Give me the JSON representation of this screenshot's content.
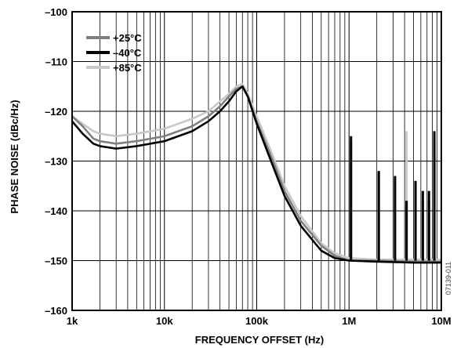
{
  "chart_data": {
    "type": "line",
    "xlabel": "FREQUENCY OFFSET (Hz)",
    "ylabel": "PHASE NOISE (dBc/Hz)",
    "x_scale": "log",
    "xlim": [
      1000,
      10000000
    ],
    "ylim": [
      -160,
      -100
    ],
    "x_ticks": [
      {
        "value": 1000,
        "label": "1k"
      },
      {
        "value": 10000,
        "label": "10k"
      },
      {
        "value": 100000,
        "label": "100k"
      },
      {
        "value": 1000000,
        "label": "1M"
      },
      {
        "value": 10000000,
        "label": "10M"
      }
    ],
    "y_ticks": [
      {
        "value": -100,
        "label": "–100"
      },
      {
        "value": -110,
        "label": "–110"
      },
      {
        "value": -120,
        "label": "–120"
      },
      {
        "value": -130,
        "label": "–130"
      },
      {
        "value": -140,
        "label": "–140"
      },
      {
        "value": -150,
        "label": "–150"
      },
      {
        "value": -160,
        "label": "–160"
      }
    ],
    "grid": true,
    "legend_position": "top-left",
    "figure_id": "07139-011",
    "series": [
      {
        "name": "+25°C",
        "color": "#7f7f7f",
        "points": [
          [
            1000,
            -121
          ],
          [
            1300,
            -123
          ],
          [
            1700,
            -125.5
          ],
          [
            2000,
            -126
          ],
          [
            3000,
            -126.5
          ],
          [
            5000,
            -126
          ],
          [
            10000,
            -125
          ],
          [
            20000,
            -123
          ],
          [
            30000,
            -121
          ],
          [
            40000,
            -119
          ],
          [
            50000,
            -117
          ],
          [
            60000,
            -115.5
          ],
          [
            70000,
            -115
          ],
          [
            80000,
            -117
          ],
          [
            100000,
            -122
          ],
          [
            150000,
            -130
          ],
          [
            200000,
            -136
          ],
          [
            300000,
            -142
          ],
          [
            500000,
            -147
          ],
          [
            700000,
            -149
          ],
          [
            1000000,
            -150
          ],
          [
            2000000,
            -150
          ],
          [
            5000000,
            -150.2
          ],
          [
            10000000,
            -150.2
          ]
        ],
        "spurs": [
          [
            1050000,
            -126
          ],
          [
            2100000,
            -132
          ],
          [
            3150000,
            -135
          ],
          [
            4200000,
            -138
          ],
          [
            5250000,
            -134
          ],
          [
            6300000,
            -138
          ],
          [
            7350000,
            -138
          ],
          [
            8400000,
            -126
          ]
        ]
      },
      {
        "name": "–40°C",
        "color": "#000000",
        "points": [
          [
            1000,
            -122
          ],
          [
            1300,
            -124.5
          ],
          [
            1700,
            -126.5
          ],
          [
            2000,
            -127
          ],
          [
            3000,
            -127.5
          ],
          [
            5000,
            -127
          ],
          [
            10000,
            -126
          ],
          [
            20000,
            -124
          ],
          [
            30000,
            -122
          ],
          [
            40000,
            -120
          ],
          [
            50000,
            -118
          ],
          [
            60000,
            -116
          ],
          [
            70000,
            -115
          ],
          [
            80000,
            -117
          ],
          [
            100000,
            -122.5
          ],
          [
            150000,
            -131
          ],
          [
            200000,
            -137
          ],
          [
            300000,
            -143
          ],
          [
            500000,
            -148
          ],
          [
            700000,
            -149.5
          ],
          [
            1000000,
            -150
          ],
          [
            2000000,
            -150.2
          ],
          [
            5000000,
            -150.4
          ],
          [
            10000000,
            -150.4
          ]
        ],
        "spurs": [
          [
            1050000,
            -125
          ],
          [
            2100000,
            -132
          ],
          [
            3150000,
            -133
          ],
          [
            4200000,
            -138
          ],
          [
            5250000,
            -134
          ],
          [
            6300000,
            -136
          ],
          [
            7350000,
            -136
          ],
          [
            8400000,
            -124
          ]
        ]
      },
      {
        "name": "+85°C",
        "color": "#c8c8c8",
        "points": [
          [
            1000,
            -121
          ],
          [
            1300,
            -122.5
          ],
          [
            1700,
            -124
          ],
          [
            2000,
            -124.5
          ],
          [
            3000,
            -125
          ],
          [
            5000,
            -124.5
          ],
          [
            10000,
            -123.5
          ],
          [
            20000,
            -121.5
          ],
          [
            30000,
            -120
          ],
          [
            40000,
            -118
          ],
          [
            50000,
            -116.5
          ],
          [
            60000,
            -115
          ],
          [
            70000,
            -114.5
          ],
          [
            80000,
            -116.5
          ],
          [
            100000,
            -121
          ],
          [
            150000,
            -129
          ],
          [
            200000,
            -135
          ],
          [
            300000,
            -141
          ],
          [
            500000,
            -146.5
          ],
          [
            700000,
            -148.5
          ],
          [
            1000000,
            -149.5
          ],
          [
            2000000,
            -149.8
          ],
          [
            5000000,
            -149.8
          ],
          [
            10000000,
            -149.8
          ]
        ],
        "spurs": [
          [
            1050000,
            -128
          ],
          [
            2100000,
            -134
          ],
          [
            3150000,
            -136
          ],
          [
            4200000,
            -124
          ],
          [
            5250000,
            -137
          ],
          [
            6300000,
            -140
          ],
          [
            7350000,
            -139
          ],
          [
            8400000,
            -128
          ]
        ]
      }
    ]
  }
}
